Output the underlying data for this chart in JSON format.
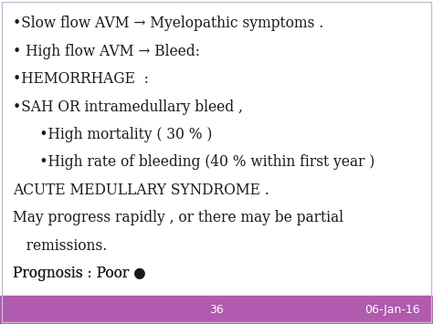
{
  "background_color": "#ffffff",
  "border_color": "#c8b8d0",
  "footer_color": "#b05ab0",
  "footer_text_color": "#ffffff",
  "slide_number": "36",
  "slide_date": "06-Jan-16",
  "text_color": "#1a1a1a",
  "footer_font_size": 9,
  "main_font_size": 11.2,
  "figwidth": 4.74,
  "figheight": 3.55,
  "lines": [
    {
      "text": "•Slow flow AVM → Myelopathic symptoms .",
      "indent": 0
    },
    {
      "text": "• High flow AVM → Bleed:",
      "indent": 0
    },
    {
      "text": "•HEMORRHAGE  :",
      "indent": 0
    },
    {
      "text": "•SAH OR intramedullary bleed ,",
      "indent": 0
    },
    {
      "text": "      •High mortality ( 30 % )",
      "indent": 1
    },
    {
      "text": "      •High rate of bleeding (40 % within first year )",
      "indent": 1
    },
    {
      "text": "ACUTE MEDULLARY SYNDROME .",
      "indent": 0
    },
    {
      "text": "May progress rapidly , or there may be partial",
      "indent": 0
    },
    {
      "text": "   remissions.",
      "indent": 0
    },
    {
      "text": "Prognosis : Poor ●",
      "indent": 0
    }
  ]
}
